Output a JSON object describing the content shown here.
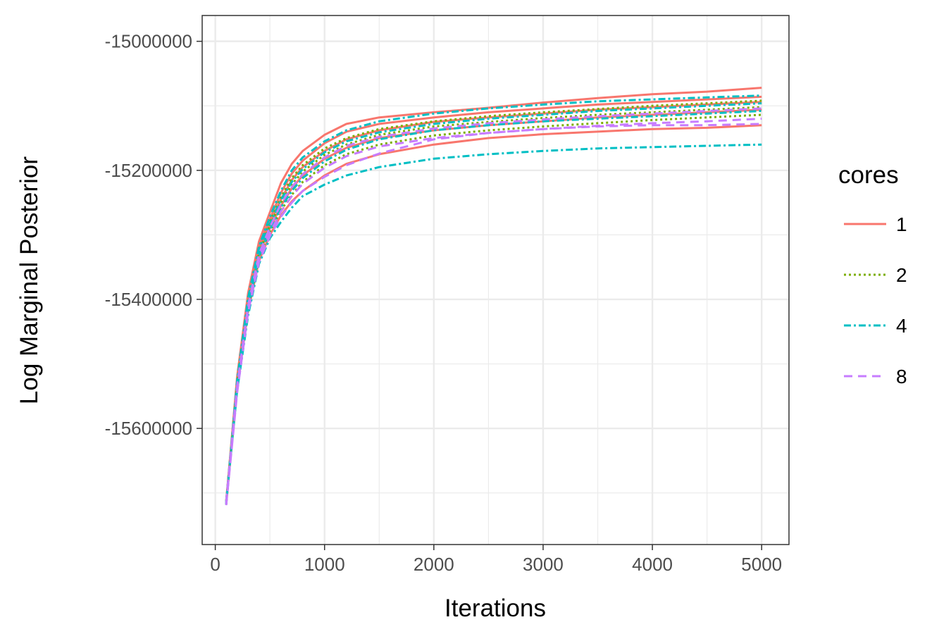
{
  "chart_data": {
    "type": "line",
    "xlabel": "Iterations",
    "ylabel": "Log Marginal Posterior",
    "xlim": [
      -120,
      5250
    ],
    "ylim": [
      -15780000,
      -14960000
    ],
    "x_ticks": [
      0,
      1000,
      2000,
      3000,
      4000,
      5000
    ],
    "x_tick_labels": [
      "0",
      "1000",
      "2000",
      "3000",
      "4000",
      "5000"
    ],
    "y_ticks": [
      -15000000,
      -15200000,
      -15400000,
      -15600000
    ],
    "y_tick_labels": [
      "-15000000",
      "-15200000",
      "-15400000",
      "-15600000"
    ],
    "grid": true,
    "legend": {
      "title": "cores",
      "position": "right",
      "entries": [
        {
          "label": "1",
          "color": "#F8766D",
          "dash": "solid"
        },
        {
          "label": "2",
          "color": "#7CAE00",
          "dash": "dotted"
        },
        {
          "label": "4",
          "color": "#00BFC4",
          "dash": "dashdot"
        },
        {
          "label": "8",
          "color": "#C77CFF",
          "dash": "dashed"
        }
      ]
    },
    "x": [
      100,
      200,
      300,
      400,
      500,
      600,
      700,
      800,
      1000,
      1200,
      1500,
      2000,
      2500,
      3000,
      3500,
      4000,
      4500,
      5000
    ],
    "series": [
      {
        "name": "1",
        "color": "#F8766D",
        "dash": "solid",
        "values": [
          -15715000,
          -15520000,
          -15390000,
          -15310000,
          -15265000,
          -15220000,
          -15190000,
          -15170000,
          -15145000,
          -15128000,
          -15118000,
          -15110000,
          -15103000,
          -15095000,
          -15088000,
          -15082000,
          -15078000,
          -15072000
        ]
      },
      {
        "name": "1",
        "color": "#F8766D",
        "dash": "solid",
        "values": [
          -15712000,
          -15525000,
          -15400000,
          -15318000,
          -15275000,
          -15235000,
          -15205000,
          -15185000,
          -15158000,
          -15140000,
          -15128000,
          -15118000,
          -15110000,
          -15104000,
          -15098000,
          -15094000,
          -15090000,
          -15086000
        ]
      },
      {
        "name": "1",
        "color": "#F8766D",
        "dash": "solid",
        "values": [
          -15718000,
          -15535000,
          -15410000,
          -15330000,
          -15290000,
          -15255000,
          -15228000,
          -15208000,
          -15182000,
          -15165000,
          -15150000,
          -15138000,
          -15130000,
          -15124000,
          -15118000,
          -15114000,
          -15110000,
          -15106000
        ]
      },
      {
        "name": "1",
        "color": "#F8766D",
        "dash": "solid",
        "values": [
          -15716000,
          -15540000,
          -15418000,
          -15340000,
          -15300000,
          -15270000,
          -15248000,
          -15232000,
          -15208000,
          -15190000,
          -15175000,
          -15160000,
          -15150000,
          -15144000,
          -15140000,
          -15136000,
          -15134000,
          -15130000
        ]
      },
      {
        "name": "1",
        "color": "#F8766D",
        "dash": "solid",
        "values": [
          -15714000,
          -15530000,
          -15405000,
          -15325000,
          -15282000,
          -15245000,
          -15215000,
          -15195000,
          -15170000,
          -15152000,
          -15138000,
          -15125000,
          -15118000,
          -15112000,
          -15106000,
          -15102000,
          -15098000,
          -15094000
        ]
      },
      {
        "name": "2",
        "color": "#7CAE00",
        "dash": "dotted",
        "values": [
          -15713000,
          -15532000,
          -15408000,
          -15328000,
          -15285000,
          -15250000,
          -15222000,
          -15202000,
          -15176000,
          -15160000,
          -15145000,
          -15132000,
          -15125000,
          -15119000,
          -15114000,
          -15110000,
          -15106000,
          -15102000
        ]
      },
      {
        "name": "2",
        "color": "#7CAE00",
        "dash": "dotted",
        "values": [
          -15717000,
          -15538000,
          -15414000,
          -15335000,
          -15295000,
          -15262000,
          -15238000,
          -15218000,
          -15192000,
          -15175000,
          -15160000,
          -15146000,
          -15138000,
          -15132000,
          -15127000,
          -15122000,
          -15118000,
          -15114000
        ]
      },
      {
        "name": "2",
        "color": "#7CAE00",
        "dash": "dotted",
        "values": [
          -15715000,
          -15528000,
          -15402000,
          -15322000,
          -15280000,
          -15242000,
          -15212000,
          -15192000,
          -15166000,
          -15150000,
          -15136000,
          -15124000,
          -15116000,
          -15110000,
          -15105000,
          -15100000,
          -15096000,
          -15092000
        ]
      },
      {
        "name": "4",
        "color": "#00BFC4",
        "dash": "dashdot",
        "values": [
          -15714000,
          -15542000,
          -15425000,
          -15345000,
          -15305000,
          -15280000,
          -15258000,
          -15240000,
          -15222000,
          -15208000,
          -15195000,
          -15182000,
          -15175000,
          -15170000,
          -15166000,
          -15164000,
          -15162000,
          -15160000
        ]
      },
      {
        "name": "4",
        "color": "#00BFC4",
        "dash": "dashdot",
        "values": [
          -15716000,
          -15526000,
          -15398000,
          -15318000,
          -15272000,
          -15232000,
          -15200000,
          -15180000,
          -15155000,
          -15138000,
          -15124000,
          -15112000,
          -15104000,
          -15098000,
          -15093000,
          -15090000,
          -15087000,
          -15084000
        ]
      },
      {
        "name": "4",
        "color": "#00BFC4",
        "dash": "dashdot",
        "values": [
          -15718000,
          -15536000,
          -15412000,
          -15333000,
          -15292000,
          -15258000,
          -15232000,
          -15212000,
          -15186000,
          -15168000,
          -15152000,
          -15138000,
          -15130000,
          -15124000,
          -15120000,
          -15116000,
          -15112000,
          -15108000
        ]
      },
      {
        "name": "4",
        "color": "#00BFC4",
        "dash": "dashdot",
        "values": [
          -15715000,
          -15530000,
          -15404000,
          -15324000,
          -15283000,
          -15246000,
          -15218000,
          -15198000,
          -15172000,
          -15155000,
          -15141000,
          -15128000,
          -15120000,
          -15114000,
          -15108000,
          -15104000,
          -15100000,
          -15096000
        ]
      },
      {
        "name": "8",
        "color": "#C77CFF",
        "dash": "dashed",
        "values": [
          -15719000,
          -15545000,
          -15420000,
          -15342000,
          -15302000,
          -15272000,
          -15250000,
          -15232000,
          -15210000,
          -15192000,
          -15174000,
          -15152000,
          -15142000,
          -15136000,
          -15132000,
          -15130000,
          -15130000,
          -15128000
        ]
      },
      {
        "name": "8",
        "color": "#C77CFF",
        "dash": "dashed",
        "values": [
          -15714000,
          -15534000,
          -15410000,
          -15330000,
          -15288000,
          -15252000,
          -15226000,
          -15206000,
          -15180000,
          -15162000,
          -15148000,
          -15135000,
          -15127000,
          -15121000,
          -15116000,
          -15112000,
          -15108000,
          -15104000
        ]
      },
      {
        "name": "8",
        "color": "#C77CFF",
        "dash": "dashed",
        "values": [
          -15716000,
          -15539000,
          -15416000,
          -15337000,
          -15297000,
          -15264000,
          -15240000,
          -15221000,
          -15196000,
          -15178000,
          -15163000,
          -15150000,
          -15142000,
          -15136000,
          -15131000,
          -15127000,
          -15124000,
          -15120000
        ]
      }
    ]
  }
}
